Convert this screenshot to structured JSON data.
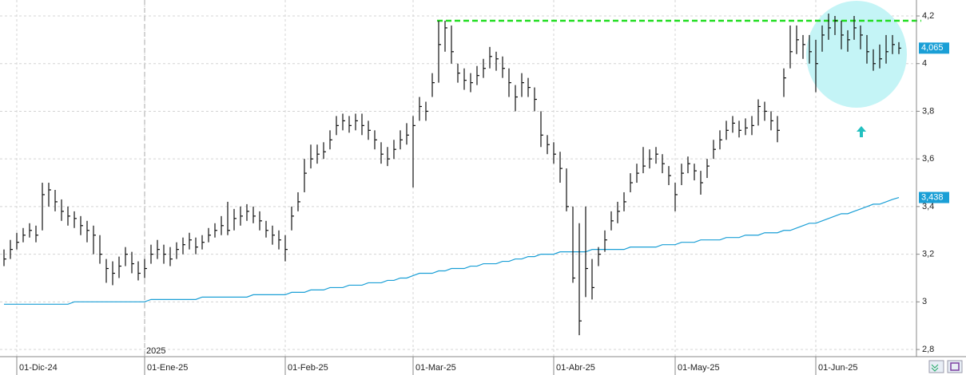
{
  "chart_data": {
    "type": "ohlc",
    "annotation": "2025",
    "annotation_index": 22,
    "ylim": [
      2.76,
      4.267
    ],
    "yticks": [
      {
        "value": 2.8,
        "label": "2,8"
      },
      3,
      {
        "value": 3.2,
        "label": "3,2"
      },
      {
        "value": 3.4,
        "label": "3,4"
      },
      {
        "value": 3.6,
        "label": "3,6"
      },
      {
        "value": 3.8,
        "label": "3,8"
      },
      4,
      {
        "value": 4.2,
        "label": "4,2"
      }
    ],
    "grid": true,
    "bar_color": "#111111",
    "categories": [
      null,
      null,
      "01-Dic-24",
      null,
      null,
      null,
      null,
      null,
      null,
      null,
      null,
      null,
      null,
      null,
      null,
      null,
      null,
      null,
      null,
      null,
      null,
      null,
      "01-Ene-25",
      null,
      null,
      null,
      null,
      null,
      null,
      null,
      null,
      null,
      null,
      null,
      null,
      null,
      null,
      null,
      null,
      null,
      null,
      null,
      null,
      null,
      "01-Feb-25",
      null,
      null,
      null,
      null,
      null,
      null,
      null,
      null,
      null,
      null,
      null,
      null,
      null,
      null,
      null,
      null,
      null,
      null,
      null,
      "01-Mar-25",
      null,
      null,
      null,
      null,
      null,
      null,
      null,
      null,
      null,
      null,
      null,
      null,
      null,
      null,
      null,
      null,
      null,
      null,
      null,
      null,
      null,
      "01-Abr-25",
      null,
      null,
      null,
      null,
      null,
      null,
      null,
      null,
      null,
      null,
      null,
      null,
      null,
      null,
      null,
      null,
      null,
      null,
      "01-May-25",
      null,
      null,
      null,
      null,
      null,
      null,
      null,
      null,
      null,
      null,
      null,
      null,
      null,
      null,
      null,
      null,
      null,
      null,
      null,
      null,
      null,
      "01-Jun-25",
      null,
      null,
      null,
      null,
      null,
      null,
      null,
      null,
      null,
      null,
      null,
      null,
      null
    ],
    "high": [
      3.22,
      3.26,
      3.29,
      3.31,
      3.33,
      3.32,
      3.5,
      3.5,
      3.47,
      3.43,
      3.4,
      3.38,
      3.36,
      3.34,
      3.32,
      3.28,
      3.18,
      3.17,
      3.19,
      3.23,
      3.21,
      3.17,
      3.18,
      3.24,
      3.26,
      3.24,
      3.23,
      3.25,
      3.27,
      3.29,
      3.27,
      3.28,
      3.31,
      3.33,
      3.36,
      3.42,
      3.39,
      3.4,
      3.41,
      3.4,
      3.38,
      3.34,
      3.32,
      3.3,
      3.28,
      3.4,
      3.46,
      3.6,
      3.66,
      3.66,
      3.67,
      3.72,
      3.78,
      3.79,
      3.78,
      3.79,
      3.79,
      3.76,
      3.72,
      3.67,
      3.65,
      3.68,
      3.72,
      3.75,
      3.78,
      3.86,
      3.84,
      3.96,
      4.18,
      4.18,
      4.16,
      4.0,
      3.98,
      3.96,
      3.99,
      4.02,
      4.07,
      4.05,
      4.03,
      3.98,
      3.91,
      3.96,
      3.94,
      3.9,
      3.8,
      3.7,
      3.67,
      3.63,
      3.56,
      3.4,
      3.33,
      3.4,
      3.18,
      3.23,
      3.3,
      3.38,
      3.42,
      3.46,
      3.54,
      3.58,
      3.65,
      3.64,
      3.65,
      3.62,
      3.57,
      3.5,
      3.58,
      3.61,
      3.58,
      3.55,
      3.6,
      3.68,
      3.72,
      3.76,
      3.78,
      3.76,
      3.77,
      3.78,
      3.85,
      3.84,
      3.8,
      3.78,
      3.98,
      4.16,
      4.16,
      4.12,
      4.12,
      4.1,
      4.16,
      4.21,
      4.2,
      4.18,
      4.14,
      4.2,
      4.16,
      4.12,
      4.06,
      4.08,
      4.12,
      4.12,
      4.09
    ],
    "low": [
      3.15,
      3.18,
      3.22,
      3.25,
      3.27,
      3.25,
      3.3,
      3.4,
      3.38,
      3.34,
      3.32,
      3.31,
      3.28,
      3.25,
      3.2,
      3.16,
      3.08,
      3.07,
      3.1,
      3.15,
      3.12,
      3.09,
      3.1,
      3.16,
      3.18,
      3.16,
      3.15,
      3.18,
      3.2,
      3.22,
      3.2,
      3.22,
      3.25,
      3.27,
      3.28,
      3.28,
      3.3,
      3.32,
      3.34,
      3.33,
      3.3,
      3.27,
      3.24,
      3.22,
      3.17,
      3.3,
      3.38,
      3.46,
      3.56,
      3.58,
      3.6,
      3.64,
      3.7,
      3.72,
      3.71,
      3.72,
      3.7,
      3.68,
      3.64,
      3.58,
      3.57,
      3.6,
      3.64,
      3.66,
      3.48,
      3.76,
      3.76,
      3.86,
      3.92,
      4.05,
      4.0,
      3.92,
      3.89,
      3.88,
      3.91,
      3.94,
      3.98,
      3.97,
      3.94,
      3.86,
      3.8,
      3.86,
      3.86,
      3.8,
      3.65,
      3.62,
      3.58,
      3.5,
      3.38,
      3.08,
      2.86,
      3.02,
      3.01,
      3.15,
      3.21,
      3.3,
      3.33,
      3.38,
      3.46,
      3.5,
      3.54,
      3.56,
      3.58,
      3.54,
      3.49,
      3.38,
      3.49,
      3.54,
      3.51,
      3.45,
      3.52,
      3.6,
      3.64,
      3.68,
      3.71,
      3.69,
      3.7,
      3.7,
      3.74,
      3.76,
      3.72,
      3.67,
      3.86,
      3.98,
      4.04,
      4.02,
      4.0,
      3.88,
      4.05,
      4.1,
      4.12,
      4.06,
      4.05,
      4.1,
      4.06,
      4.0,
      3.97,
      3.98,
      4.0,
      4.04,
      4.04
    ],
    "close": [
      3.18,
      3.22,
      3.25,
      3.28,
      3.3,
      3.28,
      3.45,
      3.47,
      3.42,
      3.38,
      3.36,
      3.35,
      3.32,
      3.3,
      3.28,
      3.2,
      3.14,
      3.12,
      3.15,
      3.2,
      3.16,
      3.12,
      3.14,
      3.2,
      3.22,
      3.2,
      3.18,
      3.22,
      3.24,
      3.26,
      3.23,
      3.25,
      3.28,
      3.3,
      3.32,
      3.3,
      3.35,
      3.36,
      3.38,
      3.36,
      3.34,
      3.3,
      3.28,
      3.26,
      3.22,
      3.36,
      3.42,
      3.54,
      3.6,
      3.62,
      3.63,
      3.68,
      3.74,
      3.76,
      3.74,
      3.76,
      3.74,
      3.72,
      3.68,
      3.62,
      3.6,
      3.64,
      3.68,
      3.7,
      3.74,
      3.82,
      3.8,
      3.92,
      4.08,
      4.15,
      4.05,
      3.96,
      3.93,
      3.92,
      3.95,
      3.98,
      4.03,
      4.02,
      3.98,
      3.92,
      3.86,
      3.92,
      3.9,
      3.85,
      3.7,
      3.66,
      3.62,
      3.56,
      3.4,
      3.1,
      2.92,
      3.14,
      3.06,
      3.2,
      3.26,
      3.34,
      3.38,
      3.42,
      3.5,
      3.54,
      3.57,
      3.6,
      3.62,
      3.58,
      3.53,
      3.45,
      3.54,
      3.58,
      3.55,
      3.5,
      3.57,
      3.64,
      3.68,
      3.72,
      3.75,
      3.72,
      3.73,
      3.74,
      3.82,
      3.8,
      3.76,
      3.72,
      3.94,
      4.05,
      4.1,
      4.08,
      4.05,
      4.0,
      4.12,
      4.15,
      4.18,
      4.12,
      4.1,
      4.15,
      4.12,
      4.05,
      4.0,
      4.02,
      4.05,
      4.08,
      4.065
    ],
    "ma": {
      "color": "#1a9fd6",
      "values": [
        2.99,
        2.99,
        2.99,
        2.99,
        2.99,
        2.99,
        2.99,
        2.99,
        2.99,
        2.99,
        2.99,
        3.0,
        3.0,
        3.0,
        3.0,
        3.0,
        3.0,
        3.0,
        3.0,
        3.0,
        3.0,
        3.0,
        3.0,
        3.01,
        3.01,
        3.01,
        3.01,
        3.01,
        3.01,
        3.01,
        3.01,
        3.02,
        3.02,
        3.02,
        3.02,
        3.02,
        3.02,
        3.02,
        3.02,
        3.03,
        3.03,
        3.03,
        3.03,
        3.03,
        3.03,
        3.04,
        3.04,
        3.04,
        3.05,
        3.05,
        3.05,
        3.06,
        3.06,
        3.06,
        3.07,
        3.07,
        3.07,
        3.08,
        3.08,
        3.08,
        3.09,
        3.09,
        3.1,
        3.1,
        3.11,
        3.12,
        3.12,
        3.12,
        3.13,
        3.13,
        3.14,
        3.14,
        3.14,
        3.15,
        3.15,
        3.16,
        3.16,
        3.16,
        3.17,
        3.17,
        3.18,
        3.18,
        3.19,
        3.19,
        3.2,
        3.2,
        3.2,
        3.21,
        3.21,
        3.21,
        3.21,
        3.21,
        3.22,
        3.22,
        3.22,
        3.22,
        3.22,
        3.22,
        3.23,
        3.23,
        3.23,
        3.23,
        3.23,
        3.24,
        3.24,
        3.24,
        3.25,
        3.25,
        3.25,
        3.26,
        3.26,
        3.26,
        3.26,
        3.27,
        3.27,
        3.27,
        3.28,
        3.28,
        3.28,
        3.29,
        3.29,
        3.29,
        3.3,
        3.3,
        3.31,
        3.32,
        3.33,
        3.33,
        3.34,
        3.35,
        3.36,
        3.37,
        3.37,
        3.38,
        3.39,
        3.4,
        3.41,
        3.41,
        3.42,
        3.43,
        3.438
      ]
    },
    "hline": {
      "value": 4.18,
      "color": "#22dd22"
    },
    "price_labels": [
      {
        "value": 4.065,
        "label": "4,065",
        "color": "#1a9fd6"
      },
      {
        "value": 3.438,
        "label": "3,438",
        "color": "#1a9fd6"
      }
    ]
  }
}
